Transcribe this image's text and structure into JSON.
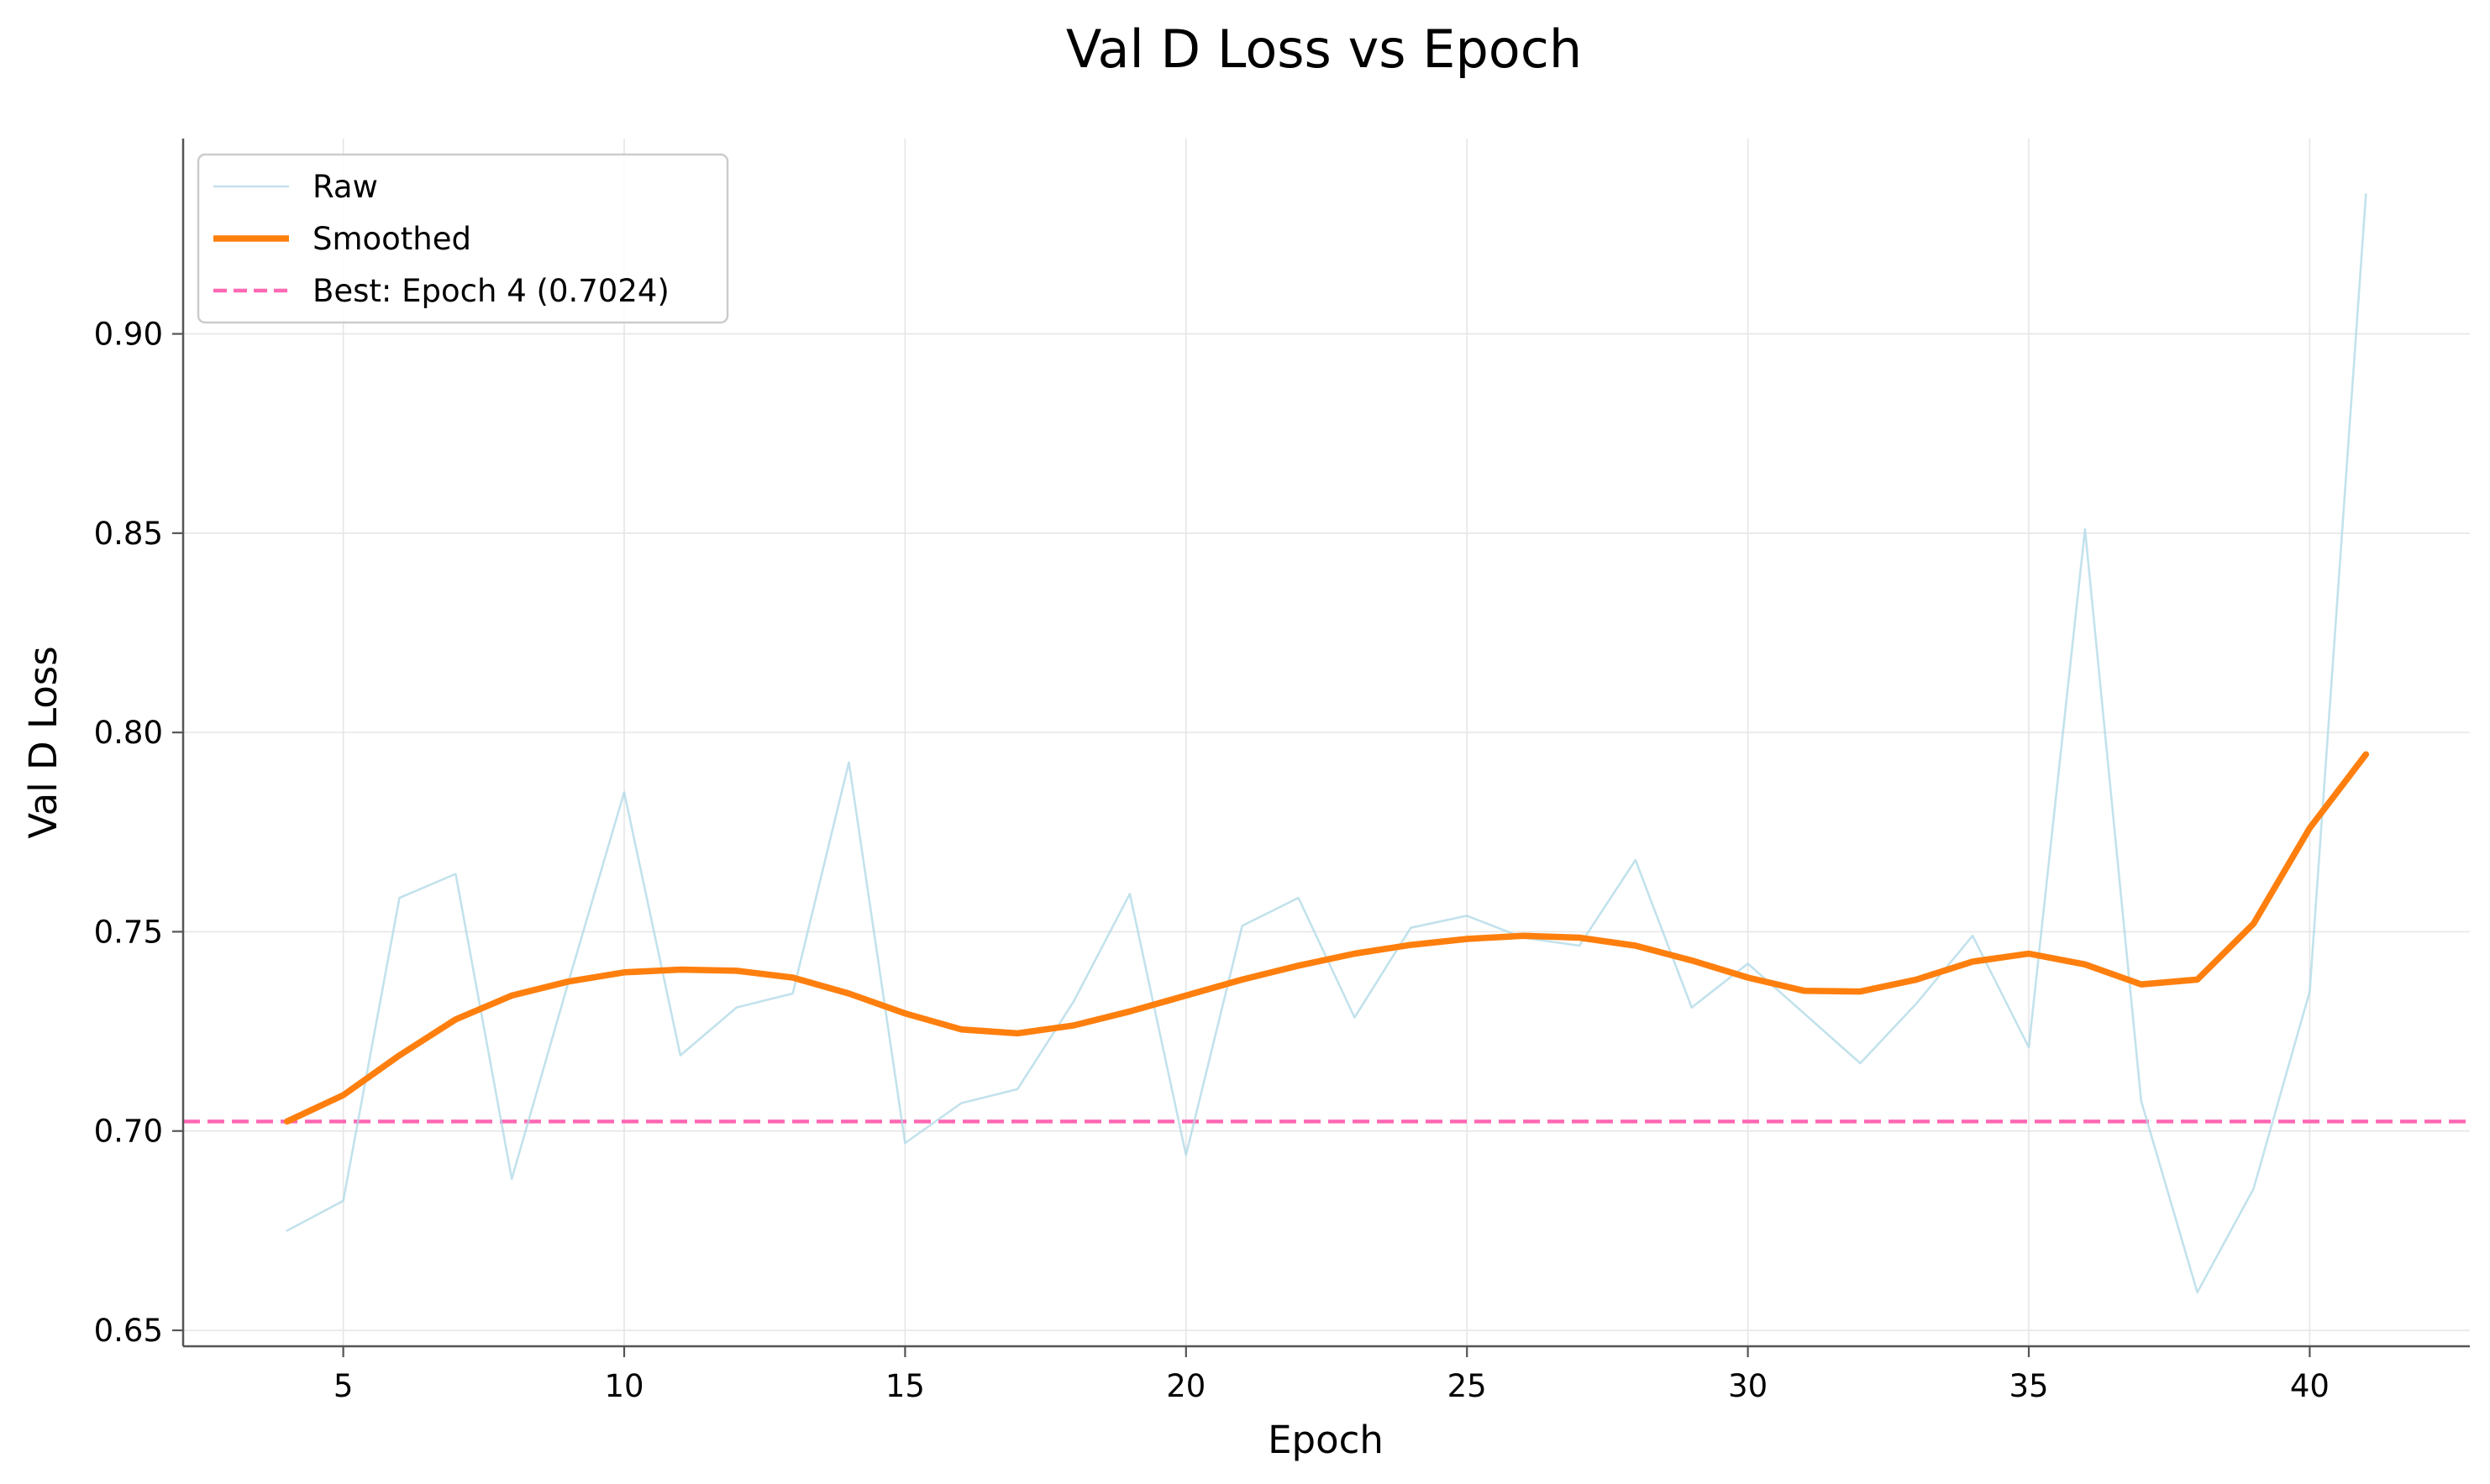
{
  "chart_data": {
    "type": "line",
    "title": "Val D Loss vs Epoch",
    "xlabel": "Epoch",
    "ylabel": "Val D Loss",
    "xlim": [
      2.15,
      42.85
    ],
    "ylim": [
      0.646,
      0.949
    ],
    "xticks": [
      5,
      10,
      15,
      20,
      25,
      30,
      35,
      40
    ],
    "yticks": [
      0.65,
      0.7,
      0.75,
      0.8,
      0.85,
      0.9
    ],
    "xtick_labels": [
      "5",
      "10",
      "15",
      "20",
      "25",
      "30",
      "35",
      "40"
    ],
    "ytick_labels": [
      "0.65",
      "0.70",
      "0.75",
      "0.80",
      "0.85",
      "0.90"
    ],
    "grid": true,
    "legend_position": "top-left",
    "x": [
      4,
      5,
      6,
      7,
      8,
      9,
      10,
      11,
      12,
      13,
      14,
      15,
      16,
      17,
      18,
      19,
      20,
      21,
      22,
      23,
      24,
      25,
      26,
      27,
      28,
      29,
      30,
      31,
      32,
      33,
      34,
      35,
      36,
      37,
      38,
      39,
      40,
      41
    ],
    "series": [
      {
        "name": "Raw",
        "color": "#add8e6",
        "style": "thin",
        "values": [
          0.675,
          0.6825,
          0.7585,
          0.7645,
          0.688,
          0.737,
          0.785,
          0.719,
          0.731,
          0.7345,
          0.7925,
          0.697,
          0.707,
          0.7105,
          0.7325,
          0.7595,
          0.694,
          0.7515,
          0.7585,
          0.7285,
          0.751,
          0.754,
          0.7485,
          0.7465,
          0.768,
          0.731,
          0.742,
          0.7295,
          0.717,
          0.732,
          0.749,
          0.721,
          0.851,
          0.7075,
          0.6595,
          0.6855,
          0.735,
          0.935
        ]
      },
      {
        "name": "Smoothed",
        "color": "#ff7f0e",
        "style": "thick",
        "values": [
          0.7024,
          0.709,
          0.719,
          0.728,
          0.734,
          0.7375,
          0.7398,
          0.7405,
          0.7402,
          0.7385,
          0.7345,
          0.7295,
          0.7255,
          0.7245,
          0.7265,
          0.73,
          0.734,
          0.738,
          0.7415,
          0.7445,
          0.7467,
          0.7482,
          0.749,
          0.7485,
          0.7465,
          0.7428,
          0.7385,
          0.7352,
          0.735,
          0.738,
          0.7425,
          0.7445,
          0.7418,
          0.7368,
          0.738,
          0.752,
          0.776,
          0.7945
        ]
      }
    ],
    "reference_lines": [
      {
        "name": "Best: Epoch 4 (0.7024)",
        "y": 0.7024,
        "color": "#ff69b4",
        "style": "dashed"
      }
    ]
  }
}
